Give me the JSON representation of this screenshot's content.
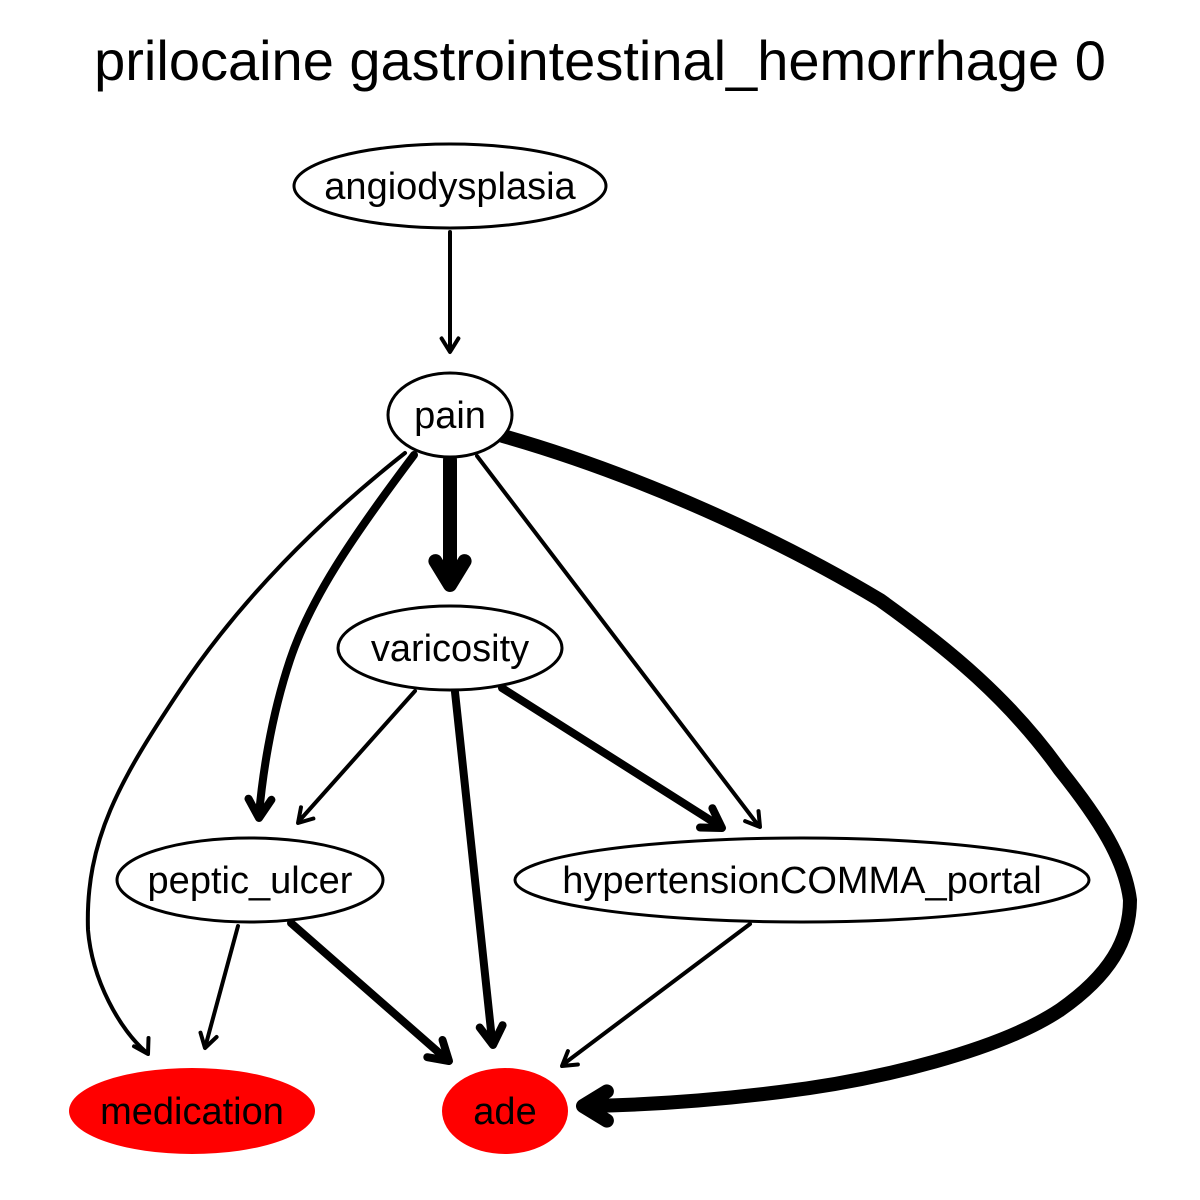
{
  "title": "prilocaine gastrointestinal_hemorrhage 0",
  "colors": {
    "highlight": "#ff0000",
    "normal_fill": "#ffffff",
    "stroke": "#000000"
  },
  "nodes": {
    "angiodysplasia": {
      "label": "angiodysplasia",
      "highlighted": false
    },
    "pain": {
      "label": "pain",
      "highlighted": false
    },
    "varicosity": {
      "label": "varicosity",
      "highlighted": false
    },
    "peptic_ulcer": {
      "label": "peptic_ulcer",
      "highlighted": false
    },
    "hypertension_portal": {
      "label": "hypertensionCOMMA_portal",
      "highlighted": false
    },
    "medication": {
      "label": "medication",
      "highlighted": true
    },
    "ade": {
      "label": "ade",
      "highlighted": true
    }
  },
  "edges": [
    {
      "from": "angiodysplasia",
      "to": "pain",
      "weight": "thin"
    },
    {
      "from": "pain",
      "to": "varicosity",
      "weight": "heavy"
    },
    {
      "from": "pain",
      "to": "peptic_ulcer",
      "weight": "medium"
    },
    {
      "from": "pain",
      "to": "medication",
      "weight": "thin"
    },
    {
      "from": "pain",
      "to": "hypertension_portal",
      "weight": "thin"
    },
    {
      "from": "pain",
      "to": "ade",
      "weight": "heavy"
    },
    {
      "from": "varicosity",
      "to": "peptic_ulcer",
      "weight": "thin"
    },
    {
      "from": "varicosity",
      "to": "ade",
      "weight": "medium"
    },
    {
      "from": "varicosity",
      "to": "hypertension_portal",
      "weight": "medium"
    },
    {
      "from": "peptic_ulcer",
      "to": "medication",
      "weight": "thin"
    },
    {
      "from": "peptic_ulcer",
      "to": "ade",
      "weight": "medium"
    },
    {
      "from": "hypertension_portal",
      "to": "ade",
      "weight": "thin"
    }
  ]
}
